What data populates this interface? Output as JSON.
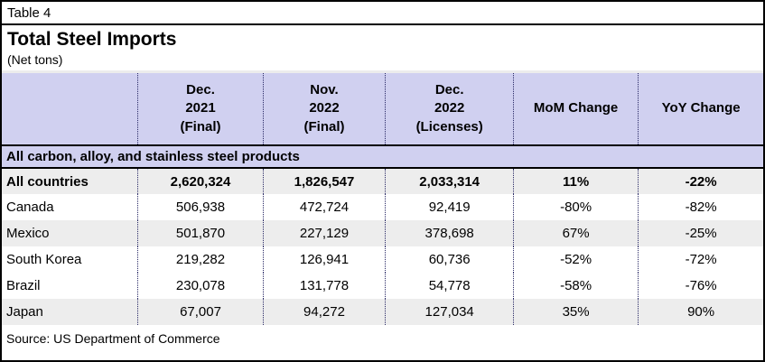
{
  "header": {
    "table_label": "Table 4",
    "title": "Total Steel Imports",
    "subtitle": "(Net tons)"
  },
  "footer": {
    "source": "Source: US Department of Commerce"
  },
  "colors": {
    "header_band": "#D0D0F0",
    "row_band": "#EDEDED",
    "dotted_separator": "#2A2A66",
    "border": "#000000"
  },
  "chart_data": {
    "type": "table",
    "title": "Total Steel Imports",
    "subtitle": "(Net tons)",
    "section": "All carbon, alloy, and stainless steel products",
    "columns": [
      "",
      "Dec.\n2021\n(Final)",
      "Nov.\n2022\n(Final)",
      "Dec.\n2022\n(Licenses)",
      "MoM Change",
      "YoY Change"
    ],
    "rows": [
      {
        "name": "All countries",
        "dec2021": "2,620,324",
        "nov2022": "1,826,547",
        "dec2022": "2,033,314",
        "mom": "11%",
        "yoy": "-22%"
      },
      {
        "name": "Canada",
        "dec2021": "506,938",
        "nov2022": "472,724",
        "dec2022": "92,419",
        "mom": "-80%",
        "yoy": "-82%"
      },
      {
        "name": "Mexico",
        "dec2021": "501,870",
        "nov2022": "227,129",
        "dec2022": "378,698",
        "mom": "67%",
        "yoy": "-25%"
      },
      {
        "name": "South Korea",
        "dec2021": "219,282",
        "nov2022": "126,941",
        "dec2022": "60,736",
        "mom": "-52%",
        "yoy": "-72%"
      },
      {
        "name": "Brazil",
        "dec2021": "230,078",
        "nov2022": "131,778",
        "dec2022": "54,778",
        "mom": "-58%",
        "yoy": "-76%"
      },
      {
        "name": "Japan",
        "dec2021": "67,007",
        "nov2022": "94,272",
        "dec2022": "127,034",
        "mom": "35%",
        "yoy": "90%"
      }
    ]
  }
}
